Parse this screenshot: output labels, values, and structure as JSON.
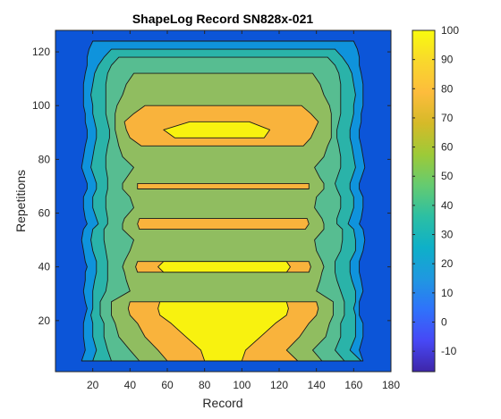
{
  "chart_data": {
    "type": "heatmap",
    "subtype": "filled-contour",
    "title": "ShapeLog Record SN828x-021",
    "xlabel": "Record",
    "ylabel": "Repetitions",
    "xlim": [
      0,
      180
    ],
    "ylim": [
      1,
      128
    ],
    "xticks": [
      "20",
      "40",
      "60",
      "80",
      "100",
      "120",
      "140",
      "160",
      "180"
    ],
    "yticks": [
      "20",
      "40",
      "60",
      "80",
      "100",
      "120"
    ],
    "xtick_values": [
      20,
      40,
      60,
      80,
      100,
      120,
      140,
      160,
      180
    ],
    "ytick_values": [
      20,
      40,
      60,
      80,
      100,
      120
    ],
    "colorbar": {
      "range": [
        -17,
        100
      ],
      "ticks": [
        "-10",
        "0",
        "10",
        "20",
        "30",
        "40",
        "50",
        "60",
        "70",
        "80",
        "90",
        "100"
      ],
      "tick_values": [
        -10,
        0,
        10,
        20,
        30,
        40,
        50,
        60,
        70,
        80,
        90,
        100
      ],
      "colormap": "parula",
      "stops": [
        "#3e26a8",
        "#4748f6",
        "#2f72fb",
        "#1f98e0",
        "#0eb0c8",
        "#2cbfa3",
        "#64cb71",
        "#9dca38",
        "#d5ba28",
        "#fdbc3c",
        "#f9d82c",
        "#f9fb0e"
      ]
    },
    "contour_levels": [
      0,
      10,
      25,
      45,
      60,
      75,
      90
    ],
    "level_colors": [
      "#0c55d8",
      "#0f93dc",
      "#2ab3a9",
      "#57bd91",
      "#90bd60",
      "#f9b33c",
      "#f8f20f"
    ],
    "base_color": "#0c55d8",
    "rows": [
      {
        "y": 2,
        "edges": [
          [
            0,
            0
          ],
          [
            1,
            0
          ],
          [
            3,
            0
          ],
          [
            6,
            0
          ],
          [
            9,
            0
          ],
          [
            11,
            0
          ],
          [
            16,
            0
          ]
        ]
      },
      {
        "y": 5,
        "edges": [
          [
            0,
            0
          ],
          [
            14,
            165
          ],
          [
            20,
            164
          ],
          [
            30,
            155
          ],
          [
            45,
            143
          ],
          [
            60,
            130
          ],
          [
            80,
            100
          ]
        ]
      },
      {
        "y": 9,
        "edges": [
          [
            0,
            0
          ],
          [
            16,
            163
          ],
          [
            22,
            158
          ],
          [
            28,
            150
          ],
          [
            40,
            138
          ],
          [
            55,
            124
          ],
          [
            78,
            102
          ]
        ]
      },
      {
        "y": 14,
        "edges": [
          [
            0,
            0
          ],
          [
            15,
            165
          ],
          [
            20,
            161
          ],
          [
            26,
            153
          ],
          [
            34,
            145
          ],
          [
            48,
            131
          ],
          [
            70,
            110
          ]
        ]
      },
      {
        "y": 19,
        "edges": [
          [
            0,
            0
          ],
          [
            15,
            165
          ],
          [
            20,
            161
          ],
          [
            26,
            153
          ],
          [
            32,
            147
          ],
          [
            44,
            136
          ],
          [
            62,
            118
          ]
        ]
      },
      {
        "y": 22,
        "edges": [
          [
            0,
            0
          ],
          [
            16,
            163
          ],
          [
            19,
            161
          ],
          [
            24,
            155
          ],
          [
            30,
            149
          ],
          [
            40,
            140
          ],
          [
            56,
            124
          ]
        ]
      },
      {
        "y": 24.5,
        "edges": [
          [
            0,
            0
          ],
          [
            17,
            163
          ],
          [
            20,
            160
          ],
          [
            24,
            155
          ],
          [
            30,
            149
          ],
          [
            39,
            141
          ],
          [
            55,
            125
          ]
        ]
      },
      {
        "y": 27,
        "edges": [
          [
            0,
            0
          ],
          [
            16,
            163
          ],
          [
            20,
            161
          ],
          [
            24,
            155
          ],
          [
            30,
            149
          ],
          [
            40,
            140
          ],
          [
            56,
            124
          ]
        ]
      },
      {
        "y": 31,
        "edges": [
          [
            0,
            0
          ],
          [
            15,
            165
          ],
          [
            20,
            161
          ],
          [
            27,
            153
          ],
          [
            40,
            140
          ],
          [
            90,
            90
          ],
          [
            90,
            90
          ]
        ]
      },
      {
        "y": 35,
        "edges": [
          [
            0,
            0
          ],
          [
            16,
            164
          ],
          [
            21,
            159
          ],
          [
            28,
            151
          ],
          [
            38,
            142
          ],
          [
            90,
            90
          ],
          [
            90,
            90
          ]
        ]
      },
      {
        "y": 38,
        "edges": [
          [
            0,
            0
          ],
          [
            16,
            163
          ],
          [
            22,
            158
          ],
          [
            28,
            150
          ],
          [
            37,
            143
          ],
          [
            44,
            136
          ],
          [
            58,
            124
          ]
        ]
      },
      {
        "y": 40,
        "edges": [
          [
            0,
            0
          ],
          [
            17,
            163
          ],
          [
            22,
            158
          ],
          [
            28,
            150
          ],
          [
            36,
            144
          ],
          [
            43,
            137
          ],
          [
            55,
            126
          ]
        ]
      },
      {
        "y": 42,
        "edges": [
          [
            0,
            0
          ],
          [
            16,
            163
          ],
          [
            22,
            158
          ],
          [
            28,
            150
          ],
          [
            37,
            143
          ],
          [
            44,
            136
          ],
          [
            58,
            124
          ]
        ]
      },
      {
        "y": 46,
        "edges": [
          [
            0,
            0
          ],
          [
            15,
            165
          ],
          [
            20,
            161
          ],
          [
            27,
            153
          ],
          [
            40,
            140
          ],
          [
            90,
            90
          ],
          [
            90,
            90
          ]
        ]
      },
      {
        "y": 50,
        "edges": [
          [
            0,
            0
          ],
          [
            14,
            166
          ],
          [
            19,
            161
          ],
          [
            26,
            154
          ],
          [
            42,
            139
          ],
          [
            90,
            90
          ],
          [
            90,
            90
          ]
        ]
      },
      {
        "y": 54,
        "edges": [
          [
            0,
            0
          ],
          [
            15,
            165
          ],
          [
            20,
            160
          ],
          [
            26,
            154
          ],
          [
            36,
            144
          ],
          [
            45,
            134
          ],
          [
            90,
            90
          ]
        ]
      },
      {
        "y": 56,
        "edges": [
          [
            0,
            0
          ],
          [
            17,
            163
          ],
          [
            23,
            157
          ],
          [
            28,
            151
          ],
          [
            36,
            144
          ],
          [
            44,
            136
          ],
          [
            58,
            123
          ]
        ]
      },
      {
        "y": 58,
        "edges": [
          [
            0,
            0
          ],
          [
            16,
            164
          ],
          [
            22,
            158
          ],
          [
            28,
            151
          ],
          [
            37,
            143
          ],
          [
            45,
            135
          ],
          [
            90,
            90
          ]
        ]
      },
      {
        "y": 62,
        "edges": [
          [
            0,
            0
          ],
          [
            15,
            165
          ],
          [
            20,
            160
          ],
          [
            27,
            153
          ],
          [
            42,
            139
          ],
          [
            90,
            90
          ],
          [
            90,
            90
          ]
        ]
      },
      {
        "y": 66,
        "edges": [
          [
            0,
            0
          ],
          [
            15,
            165
          ],
          [
            20,
            160
          ],
          [
            27,
            153
          ],
          [
            40,
            140
          ],
          [
            90,
            90
          ],
          [
            90,
            90
          ]
        ]
      },
      {
        "y": 69,
        "edges": [
          [
            0,
            0
          ],
          [
            17,
            163
          ],
          [
            22,
            158
          ],
          [
            28,
            151
          ],
          [
            36,
            144
          ],
          [
            44,
            136
          ],
          [
            90,
            90
          ]
        ]
      },
      {
        "y": 71,
        "edges": [
          [
            0,
            0
          ],
          [
            17,
            163
          ],
          [
            22,
            158
          ],
          [
            28,
            150
          ],
          [
            36,
            144
          ],
          [
            44,
            136
          ],
          [
            65,
            115
          ]
        ]
      },
      {
        "y": 73,
        "edges": [
          [
            0,
            0
          ],
          [
            16,
            164
          ],
          [
            21,
            159
          ],
          [
            28,
            151
          ],
          [
            38,
            142
          ],
          [
            90,
            90
          ],
          [
            90,
            90
          ]
        ]
      },
      {
        "y": 77,
        "edges": [
          [
            0,
            0
          ],
          [
            14,
            166
          ],
          [
            19,
            161
          ],
          [
            27,
            153
          ],
          [
            42,
            139
          ],
          [
            90,
            90
          ],
          [
            90,
            90
          ]
        ]
      },
      {
        "y": 81,
        "edges": [
          [
            0,
            0
          ],
          [
            15,
            165
          ],
          [
            20,
            160
          ],
          [
            27,
            153
          ],
          [
            36,
            144
          ],
          [
            90,
            90
          ],
          [
            90,
            90
          ]
        ]
      },
      {
        "y": 85,
        "edges": [
          [
            0,
            0
          ],
          [
            16,
            164
          ],
          [
            21,
            159
          ],
          [
            28,
            152
          ],
          [
            34,
            146
          ],
          [
            46,
            133
          ],
          [
            90,
            90
          ]
        ]
      },
      {
        "y": 88,
        "edges": [
          [
            0,
            0
          ],
          [
            17,
            163
          ],
          [
            22,
            158
          ],
          [
            29,
            151
          ],
          [
            33,
            148
          ],
          [
            40,
            137
          ],
          [
            64,
            112
          ]
        ]
      },
      {
        "y": 91,
        "edges": [
          [
            0,
            0
          ],
          [
            17,
            163
          ],
          [
            22,
            158
          ],
          [
            29,
            151
          ],
          [
            32,
            148
          ],
          [
            38,
            139
          ],
          [
            58,
            115
          ]
        ]
      },
      {
        "y": 94,
        "edges": [
          [
            0,
            0
          ],
          [
            16,
            164
          ],
          [
            21,
            159
          ],
          [
            28,
            152
          ],
          [
            32,
            148
          ],
          [
            37,
            141
          ],
          [
            72,
            104
          ]
        ]
      },
      {
        "y": 97,
        "edges": [
          [
            0,
            0
          ],
          [
            16,
            164
          ],
          [
            20,
            160
          ],
          [
            27,
            153
          ],
          [
            32,
            148
          ],
          [
            42,
            137
          ],
          [
            90,
            90
          ]
        ]
      },
      {
        "y": 100,
        "edges": [
          [
            0,
            0
          ],
          [
            15,
            165
          ],
          [
            20,
            160
          ],
          [
            27,
            153
          ],
          [
            33,
            147
          ],
          [
            48,
            132
          ],
          [
            90,
            90
          ]
        ]
      },
      {
        "y": 104,
        "edges": [
          [
            0,
            0
          ],
          [
            15,
            165
          ],
          [
            19,
            161
          ],
          [
            27,
            153
          ],
          [
            36,
            144
          ],
          [
            90,
            90
          ],
          [
            90,
            90
          ]
        ]
      },
      {
        "y": 108,
        "edges": [
          [
            0,
            0
          ],
          [
            15,
            165
          ],
          [
            20,
            160
          ],
          [
            27,
            153
          ],
          [
            38,
            142
          ],
          [
            90,
            90
          ],
          [
            90,
            90
          ]
        ]
      },
      {
        "y": 112,
        "edges": [
          [
            0,
            0
          ],
          [
            16,
            164
          ],
          [
            21,
            159
          ],
          [
            28,
            152
          ],
          [
            42,
            138
          ],
          [
            90,
            90
          ],
          [
            90,
            90
          ]
        ]
      },
      {
        "y": 115,
        "edges": [
          [
            0,
            0
          ],
          [
            17,
            163
          ],
          [
            23,
            157
          ],
          [
            30,
            150
          ],
          [
            90,
            90
          ],
          [
            90,
            90
          ],
          [
            90,
            90
          ]
        ]
      },
      {
        "y": 118,
        "edges": [
          [
            0,
            0
          ],
          [
            17,
            163
          ],
          [
            26,
            154
          ],
          [
            34,
            146
          ],
          [
            90,
            90
          ],
          [
            90,
            90
          ],
          [
            90,
            90
          ]
        ]
      },
      {
        "y": 121,
        "edges": [
          [
            0,
            0
          ],
          [
            18,
            162
          ],
          [
            30,
            150
          ],
          [
            90,
            90
          ],
          [
            90,
            90
          ],
          [
            90,
            90
          ],
          [
            90,
            90
          ]
        ]
      },
      {
        "y": 124,
        "edges": [
          [
            0,
            0
          ],
          [
            20,
            160
          ],
          [
            90,
            90
          ],
          [
            90,
            90
          ],
          [
            90,
            90
          ],
          [
            90,
            90
          ],
          [
            90,
            90
          ]
        ]
      },
      {
        "y": 126,
        "edges": [
          [
            0,
            0
          ],
          [
            90,
            90
          ],
          [
            90,
            90
          ],
          [
            90,
            90
          ],
          [
            90,
            90
          ],
          [
            90,
            90
          ],
          [
            90,
            90
          ]
        ]
      }
    ]
  }
}
